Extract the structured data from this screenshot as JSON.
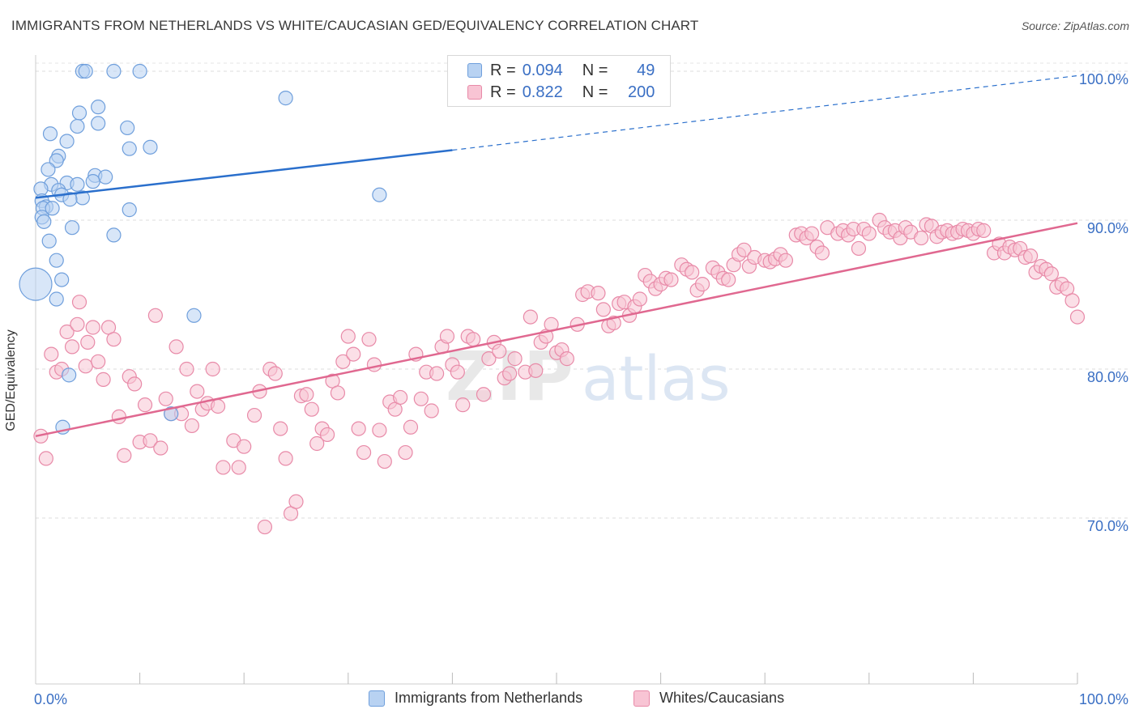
{
  "title": "IMMIGRANTS FROM NETHERLANDS VS WHITE/CAUCASIAN GED/EQUIVALENCY CORRELATION CHART",
  "source": "Source: ZipAtlas.com",
  "watermark": {
    "zip": "ZIP",
    "atlas": "atlas"
  },
  "legend": {
    "r_label": "R =",
    "n_label": "N =",
    "rows": [
      {
        "r": "0.094",
        "n": "49",
        "fill": "#b8d2f2",
        "stroke": "#6f9fdc"
      },
      {
        "r": "0.822",
        "n": "200",
        "fill": "#f8c4d4",
        "stroke": "#e88aa8"
      }
    ]
  },
  "chart_data": {
    "type": "scatter",
    "xlabel": "",
    "ylabel": "GED/Equivalency",
    "xlim": [
      0,
      100
    ],
    "ylim": [
      60,
      100
    ],
    "x_tick_labels": [
      {
        "value": 0,
        "label": "0.0%"
      },
      {
        "value": 100,
        "label": "100.0%"
      }
    ],
    "y_tick_labels": [
      {
        "value": 100,
        "label": "100.0%"
      },
      {
        "value": 90,
        "label": "90.0%"
      },
      {
        "value": 80,
        "label": "80.0%"
      },
      {
        "value": 70,
        "label": "70.0%"
      }
    ],
    "grid": true,
    "legend_position": "bottom",
    "series": [
      {
        "name": "Immigrants from Netherlands",
        "color": "#6f9fdc",
        "fill": "#b8d2f2",
        "trend": {
          "x0": 0,
          "y0": 91.5,
          "x1": 40,
          "y1": 94.7,
          "dash_to_x": 100,
          "dash_to_y": 99.7,
          "color": "#2a6fcc"
        },
        "points": [
          [
            4.5,
            100
          ],
          [
            4.8,
            100
          ],
          [
            7.5,
            100
          ],
          [
            10,
            100
          ],
          [
            24,
            98.2
          ],
          [
            6,
            97.6
          ],
          [
            4.2,
            97.2
          ],
          [
            6,
            96.5
          ],
          [
            4,
            96.3
          ],
          [
            8.8,
            96.2
          ],
          [
            1.4,
            95.8
          ],
          [
            3,
            95.3
          ],
          [
            9,
            94.8
          ],
          [
            11,
            94.9
          ],
          [
            2.2,
            94.3
          ],
          [
            2,
            94
          ],
          [
            1.2,
            93.4
          ],
          [
            5.7,
            93
          ],
          [
            6.7,
            92.9
          ],
          [
            1.5,
            92.4
          ],
          [
            3,
            92.5
          ],
          [
            5.5,
            92.6
          ],
          [
            4,
            92.4
          ],
          [
            0.5,
            92.1
          ],
          [
            2.2,
            92
          ],
          [
            2.5,
            91.7
          ],
          [
            4.5,
            91.5
          ],
          [
            3.3,
            91.4
          ],
          [
            0.6,
            91.3
          ],
          [
            1,
            90.9
          ],
          [
            0.7,
            90.8
          ],
          [
            1.6,
            90.8
          ],
          [
            33,
            91.7
          ],
          [
            9,
            90.7
          ],
          [
            0.6,
            90.2
          ],
          [
            0.8,
            89.9
          ],
          [
            3.5,
            89.5
          ],
          [
            7.5,
            89
          ],
          [
            1.3,
            88.6
          ],
          [
            2,
            87.3
          ],
          [
            2.5,
            86
          ],
          [
            0,
            85.7
          ],
          [
            2,
            84.7
          ],
          [
            15.2,
            83.6
          ],
          [
            3.2,
            79.6
          ],
          [
            13,
            77
          ],
          [
            2.6,
            76.1
          ]
        ]
      },
      {
        "name": "Whites/Caucasians",
        "color": "#e88aa8",
        "fill": "#f8c4d4",
        "trend": {
          "x0": 0,
          "y0": 75.5,
          "x1": 100,
          "y1": 89.8,
          "color": "#e06890"
        },
        "points": [
          [
            0.5,
            75.5
          ],
          [
            1,
            74
          ],
          [
            1.5,
            81
          ],
          [
            2,
            79.8
          ],
          [
            2.5,
            80
          ],
          [
            3,
            82.5
          ],
          [
            3.5,
            81.5
          ],
          [
            4,
            83
          ],
          [
            4.2,
            84.5
          ],
          [
            4.8,
            80.2
          ],
          [
            5,
            81.8
          ],
          [
            5.5,
            82.8
          ],
          [
            6,
            80.5
          ],
          [
            6.5,
            79.3
          ],
          [
            7,
            82.8
          ],
          [
            7.5,
            82
          ],
          [
            8,
            76.8
          ],
          [
            8.5,
            74.2
          ],
          [
            9,
            79.5
          ],
          [
            9.5,
            79
          ],
          [
            10,
            75.1
          ],
          [
            10.5,
            77.6
          ],
          [
            11,
            75.2
          ],
          [
            11.5,
            83.6
          ],
          [
            12,
            74.7
          ],
          [
            12.5,
            78
          ],
          [
            13,
            77
          ],
          [
            13.5,
            81.5
          ],
          [
            14,
            77
          ],
          [
            14.5,
            80
          ],
          [
            15,
            76.2
          ],
          [
            15.5,
            78.5
          ],
          [
            16,
            77.3
          ],
          [
            16.5,
            77.7
          ],
          [
            17,
            80
          ],
          [
            17.5,
            77.5
          ],
          [
            18,
            73.4
          ],
          [
            19,
            75.2
          ],
          [
            19.5,
            73.4
          ],
          [
            20,
            74.8
          ],
          [
            21,
            76.9
          ],
          [
            21.5,
            78.5
          ],
          [
            22,
            69.4
          ],
          [
            22.5,
            80
          ],
          [
            23,
            79.7
          ],
          [
            23.5,
            76
          ],
          [
            24,
            74
          ],
          [
            24.5,
            70.3
          ],
          [
            25,
            71.1
          ],
          [
            25.5,
            78.2
          ],
          [
            26,
            78.3
          ],
          [
            26.5,
            77.3
          ],
          [
            27,
            75
          ],
          [
            27.5,
            76
          ],
          [
            28,
            75.6
          ],
          [
            28.5,
            79.2
          ],
          [
            29,
            78.4
          ],
          [
            29.5,
            80.5
          ],
          [
            30,
            82.2
          ],
          [
            30.5,
            81
          ],
          [
            31,
            76
          ],
          [
            31.5,
            74.4
          ],
          [
            32,
            82
          ],
          [
            32.5,
            80.3
          ],
          [
            33,
            75.9
          ],
          [
            33.5,
            73.8
          ],
          [
            34,
            77.8
          ],
          [
            34.5,
            77.3
          ],
          [
            35,
            78.1
          ],
          [
            35.5,
            74.4
          ],
          [
            36,
            76.1
          ],
          [
            36.5,
            81
          ],
          [
            37,
            78
          ],
          [
            37.5,
            79.8
          ],
          [
            38,
            77.2
          ],
          [
            38.5,
            79.7
          ],
          [
            39,
            81.5
          ],
          [
            39.5,
            82.2
          ],
          [
            40,
            80.3
          ],
          [
            40.5,
            79.8
          ],
          [
            41,
            77.6
          ],
          [
            41.5,
            82.2
          ],
          [
            42,
            82
          ],
          [
            43,
            78.3
          ],
          [
            43.5,
            80.7
          ],
          [
            44,
            81.8
          ],
          [
            44.5,
            81.2
          ],
          [
            45,
            79.4
          ],
          [
            45.5,
            79.7
          ],
          [
            46,
            80.7
          ],
          [
            47,
            79.8
          ],
          [
            47.5,
            83.5
          ],
          [
            48,
            79.9
          ],
          [
            48.5,
            81.8
          ],
          [
            49,
            82.2
          ],
          [
            49.5,
            83
          ],
          [
            50,
            81.1
          ],
          [
            50.5,
            81.3
          ],
          [
            51,
            80.7
          ],
          [
            52,
            83
          ],
          [
            52.5,
            85
          ],
          [
            53,
            85.2
          ],
          [
            54,
            85.1
          ],
          [
            54.5,
            84
          ],
          [
            55,
            82.9
          ],
          [
            55.5,
            83.1
          ],
          [
            56,
            84.4
          ],
          [
            56.5,
            84.5
          ],
          [
            57,
            83.6
          ],
          [
            57.5,
            84.2
          ],
          [
            58,
            84.7
          ],
          [
            58.5,
            86.3
          ],
          [
            59,
            85.9
          ],
          [
            59.5,
            85.4
          ],
          [
            60,
            85.7
          ],
          [
            60.5,
            86.1
          ],
          [
            61,
            86
          ],
          [
            62,
            87
          ],
          [
            62.5,
            86.7
          ],
          [
            63,
            86.5
          ],
          [
            63.5,
            85.3
          ],
          [
            64,
            85.7
          ],
          [
            65,
            86.8
          ],
          [
            65.5,
            86.5
          ],
          [
            66,
            86.1
          ],
          [
            66.5,
            86
          ],
          [
            67,
            87
          ],
          [
            67.5,
            87.7
          ],
          [
            68,
            88
          ],
          [
            68.5,
            86.9
          ],
          [
            69,
            87.5
          ],
          [
            70,
            87.3
          ],
          [
            70.5,
            87.2
          ],
          [
            71,
            87.4
          ],
          [
            71.5,
            87.7
          ],
          [
            72,
            87.3
          ],
          [
            73,
            89
          ],
          [
            73.5,
            89.1
          ],
          [
            74,
            88.8
          ],
          [
            74.5,
            89.1
          ],
          [
            75,
            88.2
          ],
          [
            75.5,
            87.8
          ],
          [
            76,
            89.5
          ],
          [
            77,
            89.1
          ],
          [
            77.5,
            89.3
          ],
          [
            78,
            89
          ],
          [
            78.5,
            89.4
          ],
          [
            79,
            88.1
          ],
          [
            79.5,
            89.4
          ],
          [
            80,
            89.1
          ],
          [
            81,
            90
          ],
          [
            81.5,
            89.5
          ],
          [
            82,
            89.2
          ],
          [
            82.5,
            89.3
          ],
          [
            83,
            88.8
          ],
          [
            83.5,
            89.5
          ],
          [
            84,
            89.2
          ],
          [
            85,
            88.8
          ],
          [
            85.5,
            89.7
          ],
          [
            86,
            89.6
          ],
          [
            86.5,
            88.9
          ],
          [
            87,
            89.2
          ],
          [
            87.5,
            89.3
          ],
          [
            88,
            89.1
          ],
          [
            88.5,
            89.2
          ],
          [
            89,
            89.4
          ],
          [
            89.5,
            89.3
          ],
          [
            90,
            89.1
          ],
          [
            90.5,
            89.4
          ],
          [
            91,
            89.3
          ],
          [
            92,
            87.8
          ],
          [
            92.5,
            88.4
          ],
          [
            93,
            87.8
          ],
          [
            93.5,
            88.2
          ],
          [
            94,
            88
          ],
          [
            94.5,
            88.1
          ],
          [
            95,
            87.5
          ],
          [
            95.5,
            87.6
          ],
          [
            96,
            86.5
          ],
          [
            96.5,
            86.9
          ],
          [
            97,
            86.7
          ],
          [
            97.5,
            86.4
          ],
          [
            98,
            85.5
          ],
          [
            98.5,
            85.7
          ],
          [
            99,
            85.4
          ],
          [
            99.5,
            84.6
          ],
          [
            100,
            83.5
          ]
        ]
      }
    ]
  },
  "bottom_legend": [
    {
      "label": "Immigrants from Netherlands",
      "fill": "#b8d2f2",
      "stroke": "#6f9fdc"
    },
    {
      "label": "Whites/Caucasians",
      "fill": "#f8c4d4",
      "stroke": "#e88aa8"
    }
  ]
}
